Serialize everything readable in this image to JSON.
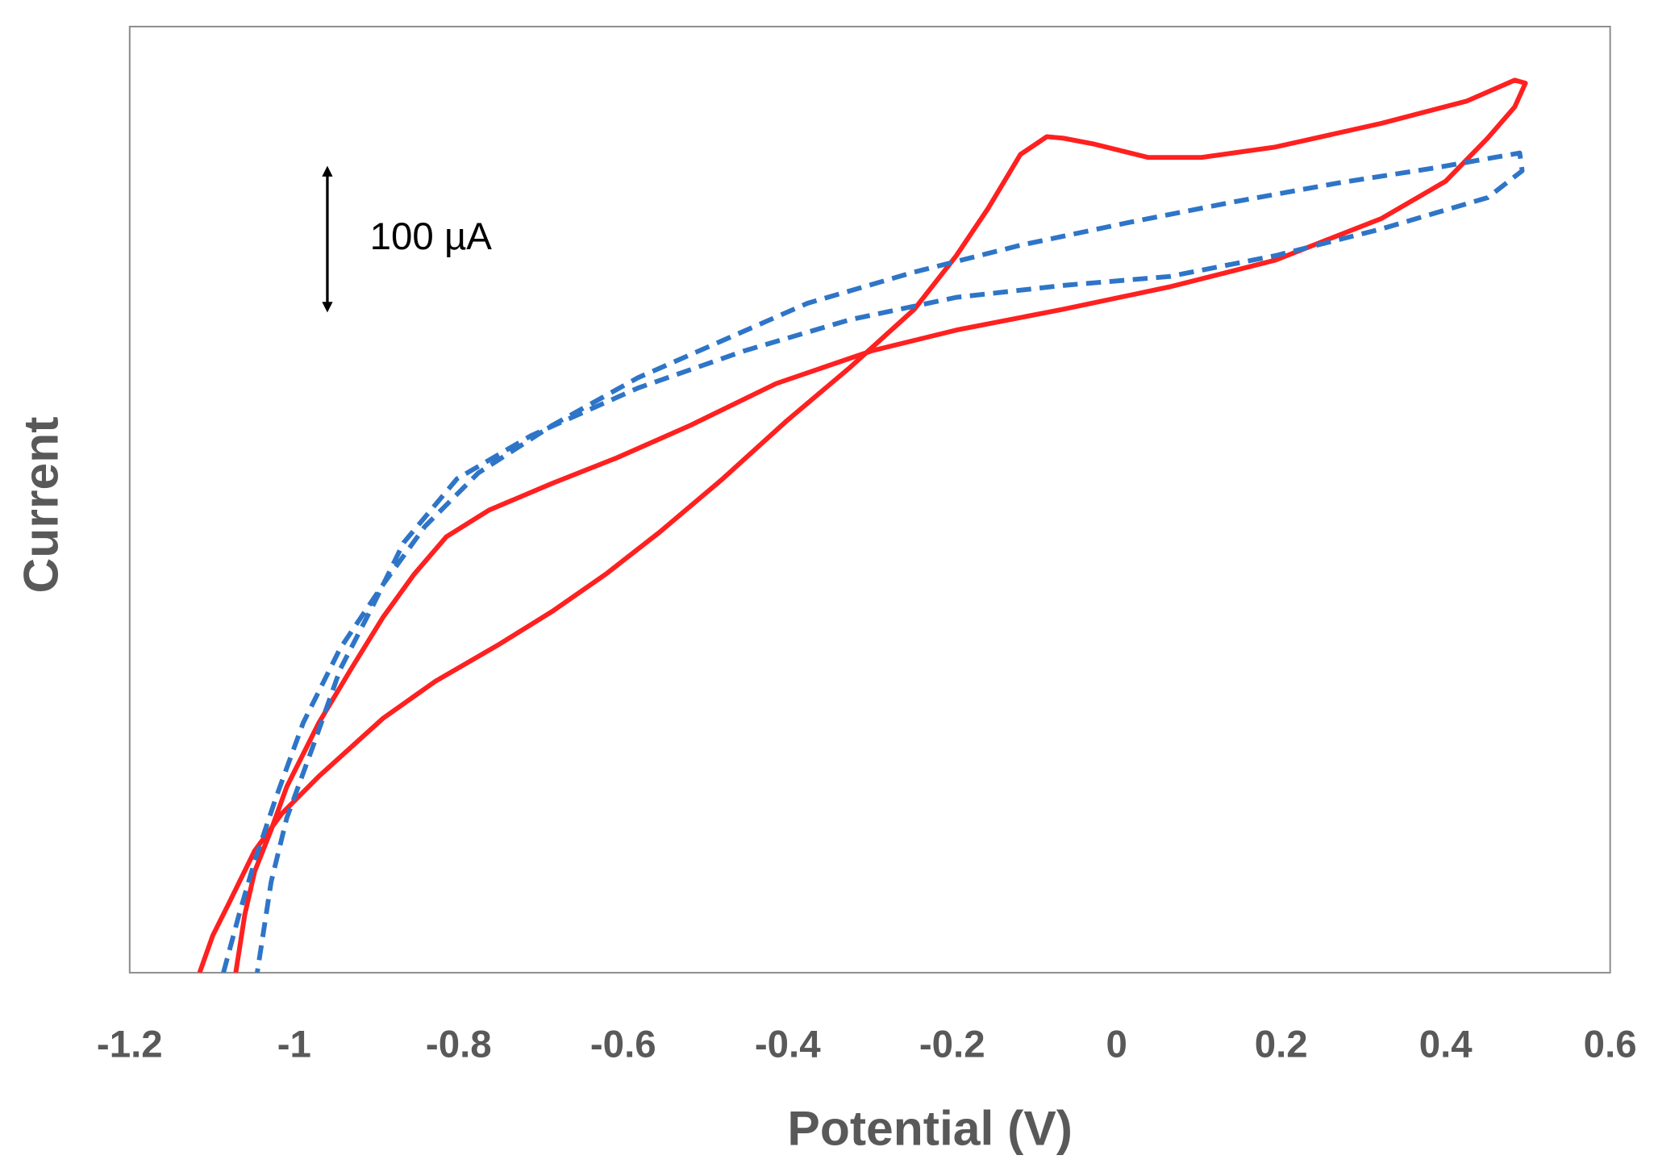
{
  "chart_data": {
    "type": "line",
    "x_label": "Potential (V)",
    "y_label": "Current",
    "xlim": [
      -1.2,
      0.6
    ],
    "xticks": [
      -1.2,
      -1,
      -0.8,
      -0.6,
      -0.4,
      -0.2,
      0,
      0.2,
      0.4,
      0.6
    ],
    "ylim": [
      0,
      636
    ],
    "annotation": {
      "label": "100 µA",
      "value": 100
    },
    "series": [
      {
        "color": "#ff2020",
        "dash": false,
        "x": [
          -1.115,
          -1.099,
          -1.08,
          -1.048,
          -1.015,
          -0.97,
          -0.892,
          -0.828,
          -0.75,
          -0.686,
          -0.621,
          -0.556,
          -0.479,
          -0.401,
          -0.324,
          -0.246,
          -0.195,
          -0.156,
          -0.117,
          -0.085,
          -0.065,
          -0.027,
          0.038,
          0.103,
          0.193,
          0.322,
          0.426,
          0.484,
          0.497,
          0.484,
          0.451,
          0.4,
          0.322,
          0.193,
          0.064,
          -0.065,
          -0.195,
          -0.298,
          -0.414,
          -0.518,
          -0.608,
          -0.686,
          -0.763,
          -0.815,
          -0.854,
          -0.892,
          -0.931,
          -0.97,
          -1.009,
          -1.028,
          -1.048,
          -1.06,
          -1.071
        ],
        "values": [
          0,
          25,
          46,
          82,
          107,
          132,
          171,
          196,
          221,
          243,
          268,
          296,
          332,
          371,
          407,
          446,
          482,
          514,
          550,
          562,
          561,
          557,
          548,
          548,
          555,
          571,
          586,
          600,
          598,
          582,
          561,
          532,
          507,
          479,
          461,
          446,
          432,
          418,
          396,
          368,
          346,
          329,
          311,
          293,
          268,
          239,
          204,
          168,
          125,
          96,
          68,
          39,
          0
        ]
      },
      {
        "color": "#2e75c8",
        "dash": true,
        "x": [
          -1.086,
          -1.067,
          -1.048,
          -1.022,
          -0.989,
          -0.944,
          -0.892,
          -0.841,
          -0.776,
          -0.686,
          -0.582,
          -0.479,
          -0.376,
          -0.246,
          -0.117,
          0.012,
          0.141,
          0.271,
          0.387,
          0.49,
          0.493,
          0.451,
          0.322,
          0.193,
          0.064,
          -0.065,
          -0.195,
          -0.324,
          -0.453,
          -0.582,
          -0.712,
          -0.802,
          -0.867,
          -0.905,
          -0.944,
          -0.976,
          -1.009,
          -1.028,
          -1.045
        ],
        "values": [
          0,
          39,
          75,
          118,
          168,
          218,
          261,
          300,
          336,
          368,
          400,
          425,
          450,
          471,
          489,
          504,
          518,
          531,
          541,
          551,
          539,
          521,
          500,
          482,
          468,
          462,
          454,
          439,
          418,
          393,
          361,
          332,
          289,
          246,
          204,
          154,
          104,
          61,
          0
        ]
      }
    ]
  }
}
